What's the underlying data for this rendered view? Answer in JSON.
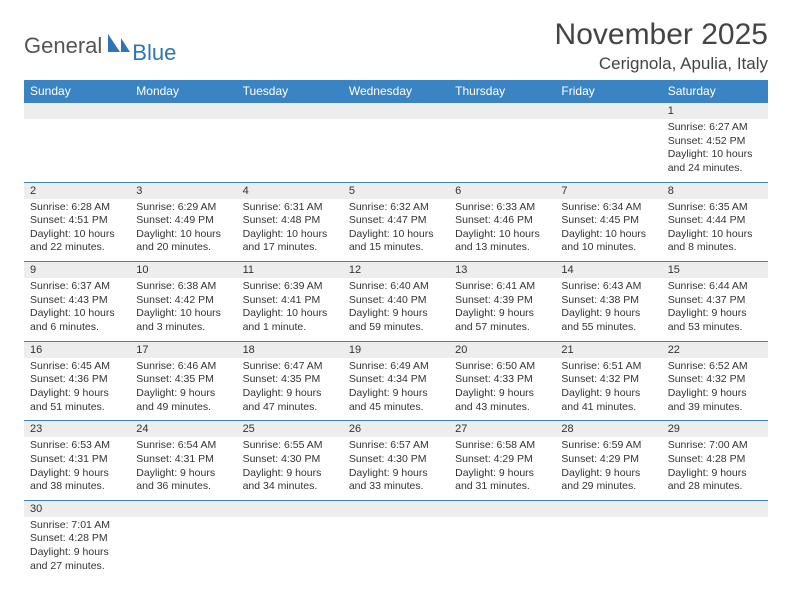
{
  "logo": {
    "text1": "General",
    "text2": "Blue"
  },
  "title": "November 2025",
  "location": "Cerignola, Apulia, Italy",
  "colors": {
    "header_bg": "#3b84c4",
    "header_text": "#ffffff",
    "daynum_bg": "#ededed",
    "border": "#3b84c4",
    "logo_blue": "#2f74b5",
    "body_text": "#333333"
  },
  "weekdays": [
    "Sunday",
    "Monday",
    "Tuesday",
    "Wednesday",
    "Thursday",
    "Friday",
    "Saturday"
  ],
  "weeks": [
    [
      null,
      null,
      null,
      null,
      null,
      null,
      {
        "n": "1",
        "sr": "Sunrise: 6:27 AM",
        "ss": "Sunset: 4:52 PM",
        "dl": "Daylight: 10 hours and 24 minutes."
      }
    ],
    [
      {
        "n": "2",
        "sr": "Sunrise: 6:28 AM",
        "ss": "Sunset: 4:51 PM",
        "dl": "Daylight: 10 hours and 22 minutes."
      },
      {
        "n": "3",
        "sr": "Sunrise: 6:29 AM",
        "ss": "Sunset: 4:49 PM",
        "dl": "Daylight: 10 hours and 20 minutes."
      },
      {
        "n": "4",
        "sr": "Sunrise: 6:31 AM",
        "ss": "Sunset: 4:48 PM",
        "dl": "Daylight: 10 hours and 17 minutes."
      },
      {
        "n": "5",
        "sr": "Sunrise: 6:32 AM",
        "ss": "Sunset: 4:47 PM",
        "dl": "Daylight: 10 hours and 15 minutes."
      },
      {
        "n": "6",
        "sr": "Sunrise: 6:33 AM",
        "ss": "Sunset: 4:46 PM",
        "dl": "Daylight: 10 hours and 13 minutes."
      },
      {
        "n": "7",
        "sr": "Sunrise: 6:34 AM",
        "ss": "Sunset: 4:45 PM",
        "dl": "Daylight: 10 hours and 10 minutes."
      },
      {
        "n": "8",
        "sr": "Sunrise: 6:35 AM",
        "ss": "Sunset: 4:44 PM",
        "dl": "Daylight: 10 hours and 8 minutes."
      }
    ],
    [
      {
        "n": "9",
        "sr": "Sunrise: 6:37 AM",
        "ss": "Sunset: 4:43 PM",
        "dl": "Daylight: 10 hours and 6 minutes."
      },
      {
        "n": "10",
        "sr": "Sunrise: 6:38 AM",
        "ss": "Sunset: 4:42 PM",
        "dl": "Daylight: 10 hours and 3 minutes."
      },
      {
        "n": "11",
        "sr": "Sunrise: 6:39 AM",
        "ss": "Sunset: 4:41 PM",
        "dl": "Daylight: 10 hours and 1 minute."
      },
      {
        "n": "12",
        "sr": "Sunrise: 6:40 AM",
        "ss": "Sunset: 4:40 PM",
        "dl": "Daylight: 9 hours and 59 minutes."
      },
      {
        "n": "13",
        "sr": "Sunrise: 6:41 AM",
        "ss": "Sunset: 4:39 PM",
        "dl": "Daylight: 9 hours and 57 minutes."
      },
      {
        "n": "14",
        "sr": "Sunrise: 6:43 AM",
        "ss": "Sunset: 4:38 PM",
        "dl": "Daylight: 9 hours and 55 minutes."
      },
      {
        "n": "15",
        "sr": "Sunrise: 6:44 AM",
        "ss": "Sunset: 4:37 PM",
        "dl": "Daylight: 9 hours and 53 minutes."
      }
    ],
    [
      {
        "n": "16",
        "sr": "Sunrise: 6:45 AM",
        "ss": "Sunset: 4:36 PM",
        "dl": "Daylight: 9 hours and 51 minutes."
      },
      {
        "n": "17",
        "sr": "Sunrise: 6:46 AM",
        "ss": "Sunset: 4:35 PM",
        "dl": "Daylight: 9 hours and 49 minutes."
      },
      {
        "n": "18",
        "sr": "Sunrise: 6:47 AM",
        "ss": "Sunset: 4:35 PM",
        "dl": "Daylight: 9 hours and 47 minutes."
      },
      {
        "n": "19",
        "sr": "Sunrise: 6:49 AM",
        "ss": "Sunset: 4:34 PM",
        "dl": "Daylight: 9 hours and 45 minutes."
      },
      {
        "n": "20",
        "sr": "Sunrise: 6:50 AM",
        "ss": "Sunset: 4:33 PM",
        "dl": "Daylight: 9 hours and 43 minutes."
      },
      {
        "n": "21",
        "sr": "Sunrise: 6:51 AM",
        "ss": "Sunset: 4:32 PM",
        "dl": "Daylight: 9 hours and 41 minutes."
      },
      {
        "n": "22",
        "sr": "Sunrise: 6:52 AM",
        "ss": "Sunset: 4:32 PM",
        "dl": "Daylight: 9 hours and 39 minutes."
      }
    ],
    [
      {
        "n": "23",
        "sr": "Sunrise: 6:53 AM",
        "ss": "Sunset: 4:31 PM",
        "dl": "Daylight: 9 hours and 38 minutes."
      },
      {
        "n": "24",
        "sr": "Sunrise: 6:54 AM",
        "ss": "Sunset: 4:31 PM",
        "dl": "Daylight: 9 hours and 36 minutes."
      },
      {
        "n": "25",
        "sr": "Sunrise: 6:55 AM",
        "ss": "Sunset: 4:30 PM",
        "dl": "Daylight: 9 hours and 34 minutes."
      },
      {
        "n": "26",
        "sr": "Sunrise: 6:57 AM",
        "ss": "Sunset: 4:30 PM",
        "dl": "Daylight: 9 hours and 33 minutes."
      },
      {
        "n": "27",
        "sr": "Sunrise: 6:58 AM",
        "ss": "Sunset: 4:29 PM",
        "dl": "Daylight: 9 hours and 31 minutes."
      },
      {
        "n": "28",
        "sr": "Sunrise: 6:59 AM",
        "ss": "Sunset: 4:29 PM",
        "dl": "Daylight: 9 hours and 29 minutes."
      },
      {
        "n": "29",
        "sr": "Sunrise: 7:00 AM",
        "ss": "Sunset: 4:28 PM",
        "dl": "Daylight: 9 hours and 28 minutes."
      }
    ],
    [
      {
        "n": "30",
        "sr": "Sunrise: 7:01 AM",
        "ss": "Sunset: 4:28 PM",
        "dl": "Daylight: 9 hours and 27 minutes."
      },
      null,
      null,
      null,
      null,
      null,
      null
    ]
  ]
}
